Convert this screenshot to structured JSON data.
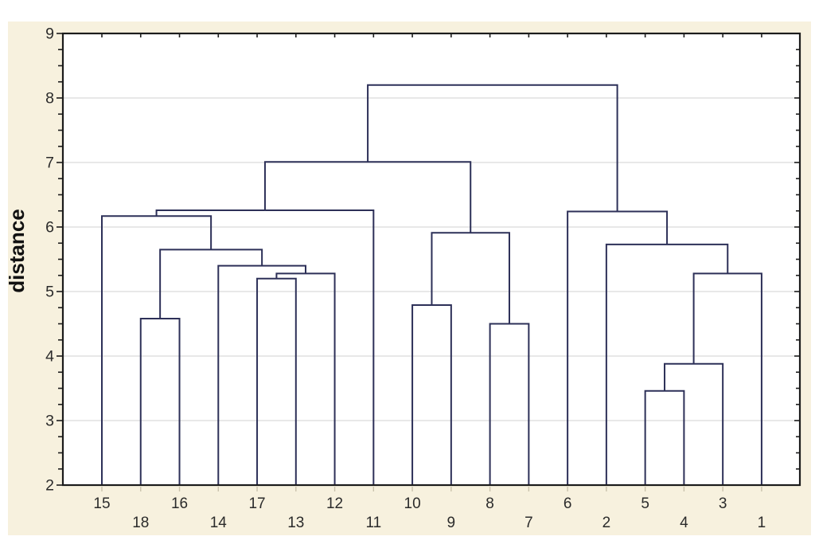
{
  "colors": {
    "canvas_bg": "#ffffff",
    "panel_bg": "#f7f1de",
    "plot_bg": "#ffffff",
    "grid": "#d9d9d9",
    "frame": "#1c1c1c",
    "line": "#2d3058",
    "text": "#2b2b2b",
    "faint_tick": "#c9c2ac"
  },
  "chart_data": {
    "type": "dendrogram",
    "ylabel": "distance",
    "y_axis": {
      "min": 2,
      "max": 9,
      "tick_values": [
        9,
        8,
        7,
        6,
        5,
        4,
        3,
        2
      ],
      "tick_labels": [
        "9",
        "8",
        "7",
        "6",
        "5",
        "4",
        "3",
        "2"
      ],
      "minor_tick_step": 0.25,
      "gridline_values": [
        3,
        4,
        5,
        6,
        7,
        8
      ],
      "grid": "on"
    },
    "leaves": [
      "15",
      "18",
      "16",
      "14",
      "17",
      "13",
      "12",
      "11",
      "10",
      "9",
      "8",
      "7",
      "6",
      "2",
      "5",
      "4",
      "3",
      "1"
    ],
    "merges": [
      {
        "a": "L:18",
        "b": "L:16",
        "height": 4.58
      },
      {
        "a": "L:17",
        "b": "L:13",
        "height": 5.2
      },
      {
        "a": "M:1",
        "b": "L:12",
        "height": 5.28
      },
      {
        "a": "L:14",
        "b": "M:2",
        "height": 5.4
      },
      {
        "a": "M:0",
        "b": "M:3",
        "height": 5.65
      },
      {
        "a": "L:15",
        "b": "M:4",
        "height": 6.17
      },
      {
        "a": "M:5",
        "b": "L:11",
        "height": 6.26
      },
      {
        "a": "L:10",
        "b": "L:9",
        "height": 4.79
      },
      {
        "a": "L:8",
        "b": "L:7",
        "height": 4.5
      },
      {
        "a": "M:7",
        "b": "M:8",
        "height": 5.91
      },
      {
        "a": "L:5",
        "b": "L:4",
        "height": 3.46
      },
      {
        "a": "M:10",
        "b": "L:3",
        "height": 3.88
      },
      {
        "a": "M:11",
        "b": "L:1",
        "height": 5.28
      },
      {
        "a": "L:2",
        "b": "M:12",
        "height": 5.73
      },
      {
        "a": "L:6",
        "b": "M:13",
        "height": 6.24
      },
      {
        "a": "M:6",
        "b": "M:9",
        "height": 7.01
      },
      {
        "a": "M:15",
        "b": "M:14",
        "height": 8.2
      }
    ]
  }
}
